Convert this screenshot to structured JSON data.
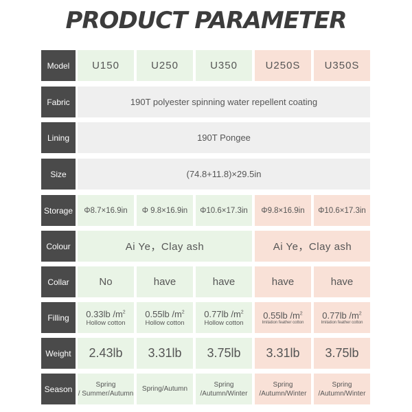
{
  "title": "PRODUCT PARAMETER",
  "colors": {
    "label_bg": "#4a4a4a",
    "standard_bg": "#e9f4e6",
    "s_series_bg": "#f9e1d7",
    "shared_bg": "#efefef"
  },
  "rows": [
    {
      "label": "Model",
      "type": "cols",
      "cls": "f-model",
      "cells": [
        "U150",
        "U250",
        "U350",
        "U250S",
        "U350S"
      ]
    },
    {
      "label": "Fabric",
      "type": "full",
      "cls": "f-wide",
      "value": "190T polyester spinning water repellent coating"
    },
    {
      "label": "Lining",
      "type": "full",
      "cls": "f-wide",
      "value": "190T Pongee"
    },
    {
      "label": "Size",
      "type": "full",
      "cls": "f-wide",
      "value": "(74.8+11.8)×29.5in"
    },
    {
      "label": "Storage",
      "type": "cols",
      "cls": "f-storage",
      "cells": [
        "Φ8.7×16.9in",
        "Φ 9.8×16.9in",
        "Φ10.6×17.3in",
        "Φ9.8×16.9in",
        "Φ10.6×17.3in"
      ]
    },
    {
      "label": "Colour",
      "type": "split",
      "cls": "f-colour",
      "left": "Ai Ye，Clay ash",
      "right": "Ai Ye，Clay ash"
    },
    {
      "label": "Collar",
      "type": "cols",
      "cls": "f-collar",
      "cells": [
        "No",
        "have",
        "have",
        "have",
        "have"
      ]
    },
    {
      "label": "Filling",
      "type": "filling",
      "cells": [
        {
          "main": "0.33lb /m",
          "sup": "2",
          "sub": "Hollow cotton"
        },
        {
          "main": "0.55lb /m",
          "sup": "2",
          "sub": "Hollow cotton"
        },
        {
          "main": "0.77lb /m",
          "sup": "2",
          "sub": "Hollow cotton"
        },
        {
          "main": "0.55lb /m",
          "sup": "2",
          "sub": "Imitation feather cotton"
        },
        {
          "main": "0.77lb /m",
          "sup": "2",
          "sub": "Imitation feather cotton"
        }
      ]
    },
    {
      "label": "Weight",
      "type": "cols",
      "cls": "f-weight",
      "cells": [
        "2.43lb",
        "3.31lb",
        "3.75lb",
        "3.31lb",
        "3.75lb"
      ]
    },
    {
      "label": "Season",
      "type": "season",
      "cells": [
        [
          "Spring",
          "/ Summer/Autumn"
        ],
        [
          "Spring/Autumn"
        ],
        [
          "Spring",
          "/Autumn/Winter"
        ],
        [
          "Spring",
          "/Autumn/Winter"
        ],
        [
          "Spring",
          "/Autumn/Winter"
        ]
      ]
    }
  ]
}
